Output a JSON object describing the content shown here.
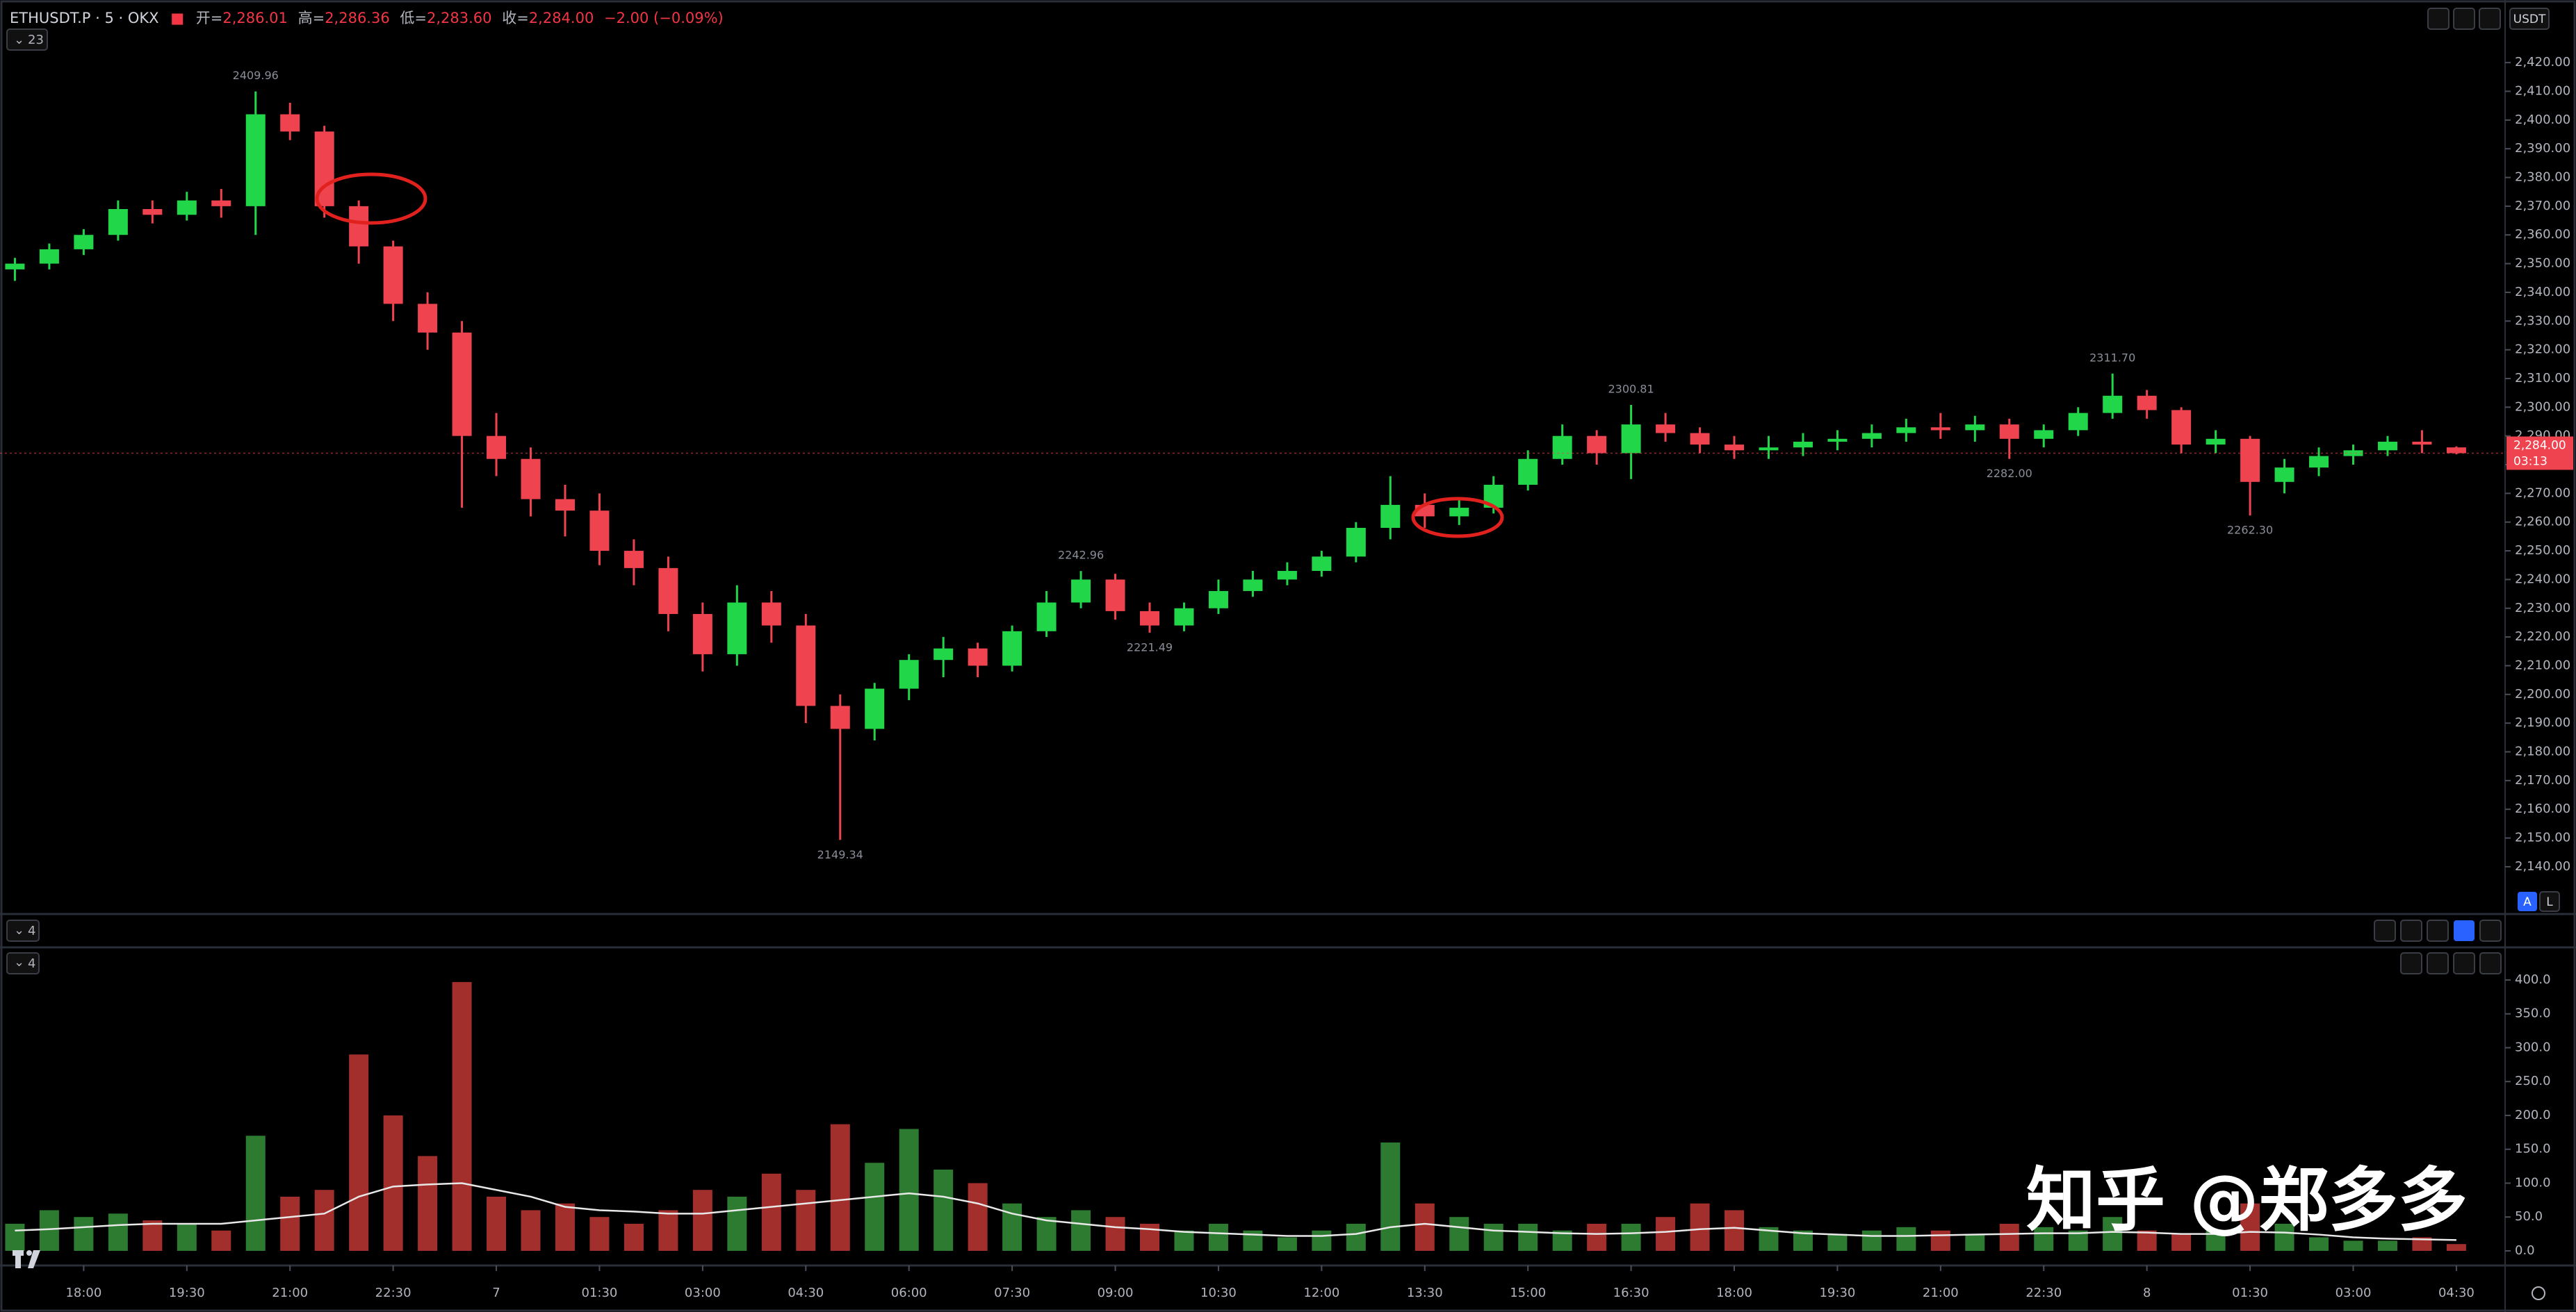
{
  "header": {
    "symbol": "ETHUSDT.P · 5 · OKX",
    "open_label": "开=",
    "open": "2,286.01",
    "high_label": "高=",
    "high": "2,286.36",
    "low_label": "低=",
    "low": "2,283.60",
    "close_label": "收=",
    "close": "2,284.00",
    "change": "−2.00 (−0.09%)"
  },
  "toolbar": {
    "currency": "USDT",
    "auto": "A",
    "log": "L"
  },
  "panes": {
    "main_count": "23",
    "second_count": "4",
    "volume_count": "4"
  },
  "watermark": "知乎 @郑多多",
  "chart_data": [
    {
      "type": "candlestick",
      "x": [
        -60,
        -30,
        0,
        30,
        60,
        90,
        120,
        150,
        180,
        210,
        240,
        270,
        300,
        330,
        360,
        390,
        420,
        450,
        480,
        510,
        540,
        570,
        600,
        630,
        660,
        690,
        720,
        750,
        780,
        810,
        840,
        870,
        900,
        930,
        960,
        990,
        1020,
        1050,
        1080,
        1110,
        1140,
        1170,
        1200,
        1230,
        1260,
        1290,
        1320,
        1350,
        1380,
        1410,
        1440,
        1470,
        1500,
        1530,
        1560,
        1590,
        1620,
        1650,
        1680,
        1710,
        1740,
        1770,
        1800,
        1830,
        1860,
        1890,
        1920,
        1950,
        1980,
        2010,
        2040,
        2070
      ],
      "open": [
        2348,
        2350,
        2355,
        2360,
        2369,
        2367,
        2372,
        2370,
        2402,
        2396,
        2370,
        2356,
        2336,
        2326,
        2290,
        2282,
        2268,
        2264,
        2250,
        2244,
        2228,
        2214,
        2232,
        2224,
        2196,
        2188,
        2202,
        2212,
        2216,
        2210,
        2222,
        2232,
        2240,
        2229,
        2224,
        2230,
        2236,
        2240,
        2243,
        2248,
        2258,
        2266,
        2262,
        2265,
        2273,
        2282,
        2290,
        2284,
        2294,
        2291,
        2287,
        2285,
        2286,
        2288,
        2289,
        2291,
        2293,
        2292,
        2294,
        2289,
        2292,
        2298,
        2304,
        2299,
        2287,
        2289,
        2274,
        2279,
        2283,
        2285,
        2288,
        2286.01
      ],
      "high": [
        2352,
        2357,
        2362,
        2372,
        2372,
        2375,
        2376,
        2409.96,
        2406,
        2398,
        2372,
        2358,
        2340,
        2330,
        2298,
        2286,
        2273,
        2270,
        2254,
        2248,
        2232,
        2238,
        2236,
        2228,
        2200,
        2204,
        2214,
        2220,
        2218,
        2224,
        2236,
        2242.96,
        2242,
        2232,
        2232,
        2240,
        2243,
        2246,
        2250,
        2260,
        2276,
        2270,
        2268,
        2276,
        2285,
        2294,
        2292,
        2300.81,
        2298,
        2293,
        2290,
        2290,
        2291,
        2292,
        2294,
        2296,
        2298,
        2297,
        2296,
        2294,
        2300,
        2311.7,
        2306,
        2300,
        2292,
        2290,
        2282,
        2286,
        2287,
        2290,
        2292,
        2286.36
      ],
      "low": [
        2344,
        2348,
        2353,
        2358,
        2364,
        2365,
        2366,
        2360,
        2393,
        2366,
        2350,
        2330,
        2320,
        2265,
        2276,
        2262,
        2255,
        2245,
        2238,
        2222,
        2208,
        2210,
        2218,
        2190,
        2149.34,
        2184,
        2198,
        2206,
        2206,
        2208,
        2220,
        2230,
        2226,
        2221.49,
        2222,
        2228,
        2234,
        2238,
        2241,
        2246,
        2254,
        2258,
        2259,
        2263,
        2271,
        2280,
        2280,
        2275,
        2288,
        2284,
        2282,
        2282,
        2283,
        2285,
        2286,
        2288,
        2289,
        2288,
        2282,
        2286,
        2290,
        2296,
        2296,
        2284,
        2284,
        2262.3,
        2270,
        2276,
        2280,
        2283,
        2284,
        2283.6
      ],
      "close": [
        2350,
        2355,
        2360,
        2369,
        2367,
        2372,
        2370,
        2402,
        2396,
        2370,
        2356,
        2336,
        2326,
        2290,
        2282,
        2268,
        2264,
        2250,
        2244,
        2228,
        2214,
        2232,
        2224,
        2196,
        2188,
        2202,
        2212,
        2216,
        2210,
        2222,
        2232,
        2240,
        2229,
        2224,
        2230,
        2236,
        2240,
        2243,
        2248,
        2258,
        2266,
        2262,
        2265,
        2273,
        2282,
        2290,
        2284,
        2294,
        2291,
        2287,
        2285,
        2286,
        2288,
        2289,
        2291,
        2293,
        2292,
        2294,
        2289,
        2292,
        2298,
        2304,
        2299,
        2287,
        2289,
        2274,
        2279,
        2283,
        2285,
        2288,
        2287,
        2284
      ],
      "up_color": "#22d64a",
      "down_color": "#ef4350",
      "xlim": [
        -73,
        2112.5
      ],
      "xticks": [
        {
          "value": 0,
          "label": "18:00"
        },
        {
          "value": 90,
          "label": "19:30"
        },
        {
          "value": 180,
          "label": "21:00"
        },
        {
          "value": 270,
          "label": "22:30"
        },
        {
          "value": 360,
          "label": "7"
        },
        {
          "value": 450,
          "label": "01:30"
        },
        {
          "value": 540,
          "label": "03:00"
        },
        {
          "value": 630,
          "label": "04:30"
        },
        {
          "value": 720,
          "label": "06:00"
        },
        {
          "value": 810,
          "label": "07:30"
        },
        {
          "value": 900,
          "label": "09:00"
        },
        {
          "value": 990,
          "label": "10:30"
        },
        {
          "value": 1080,
          "label": "12:00"
        },
        {
          "value": 1170,
          "label": "13:30"
        },
        {
          "value": 1260,
          "label": "15:00"
        },
        {
          "value": 1350,
          "label": "16:30"
        },
        {
          "value": 1440,
          "label": "18:00"
        },
        {
          "value": 1530,
          "label": "19:30"
        },
        {
          "value": 1620,
          "label": "21:00"
        },
        {
          "value": 1710,
          "label": "22:30"
        },
        {
          "value": 1800,
          "label": "8"
        },
        {
          "value": 1890,
          "label": "01:30"
        },
        {
          "value": 1980,
          "label": "03:00"
        },
        {
          "value": 2070,
          "label": "04:30"
        }
      ],
      "ylim": [
        2124.5,
        2437.2
      ],
      "yticks": [
        {
          "value": 2140,
          "label": "2,140.00"
        },
        {
          "value": 2150,
          "label": "2,150.00"
        },
        {
          "value": 2160,
          "label": "2,160.00"
        },
        {
          "value": 2170,
          "label": "2,170.00"
        },
        {
          "value": 2180,
          "label": "2,180.00"
        },
        {
          "value": 2190,
          "label": "2,190.00"
        },
        {
          "value": 2200,
          "label": "2,200.00"
        },
        {
          "value": 2210,
          "label": "2,210.00"
        },
        {
          "value": 2220,
          "label": "2,220.00"
        },
        {
          "value": 2230,
          "label": "2,230.00"
        },
        {
          "value": 2240,
          "label": "2,240.00"
        },
        {
          "value": 2250,
          "label": "2,250.00"
        },
        {
          "value": 2260,
          "label": "2,260.00"
        },
        {
          "value": 2270,
          "label": "2,270.00"
        },
        {
          "value": 2280,
          "label": "2,280.00"
        },
        {
          "value": 2290,
          "label": "2,290.00"
        },
        {
          "value": 2300,
          "label": "2,300.00"
        },
        {
          "value": 2310,
          "label": "2,310.00"
        },
        {
          "value": 2320,
          "label": "2,320.00"
        },
        {
          "value": 2330,
          "label": "2,330.00"
        },
        {
          "value": 2340,
          "label": "2,340.00"
        },
        {
          "value": 2350,
          "label": "2,350.00"
        },
        {
          "value": 2360,
          "label": "2,360.00"
        },
        {
          "value": 2370,
          "label": "2,370.00"
        },
        {
          "value": 2380,
          "label": "2,380.00"
        },
        {
          "value": 2390,
          "label": "2,390.00"
        },
        {
          "value": 2400,
          "label": "2,400.00"
        },
        {
          "value": 2410,
          "label": "2,410.00"
        },
        {
          "value": 2420,
          "label": "2,420.00"
        }
      ],
      "last_price": {
        "value": 2284,
        "label": "2,284.00",
        "countdown": "03:13"
      },
      "extremes": [
        {
          "x": 150,
          "value": 2409.96,
          "label": "2409.96",
          "side": "above"
        },
        {
          "x": 660,
          "value": 2149.34,
          "label": "2149.34",
          "side": "below"
        },
        {
          "x": 870,
          "value": 2242.96,
          "label": "2242.96",
          "side": "above"
        },
        {
          "x": 930,
          "value": 2221.49,
          "label": "2221.49",
          "side": "below"
        },
        {
          "x": 1350,
          "value": 2300.81,
          "label": "2300.81",
          "side": "above"
        },
        {
          "x": 1770,
          "value": 2311.7,
          "label": "2311.70",
          "side": "above"
        },
        {
          "x": 1680,
          "value": 2282.0,
          "label": "2282.00",
          "side": "below"
        },
        {
          "x": 1890,
          "value": 2262.3,
          "label": "2262.30",
          "side": "below"
        }
      ]
    },
    {
      "type": "bar",
      "x": [
        -60,
        -30,
        0,
        30,
        60,
        90,
        120,
        150,
        180,
        210,
        240,
        270,
        300,
        330,
        360,
        390,
        420,
        450,
        480,
        510,
        540,
        570,
        600,
        630,
        660,
        690,
        720,
        750,
        780,
        810,
        840,
        870,
        900,
        930,
        960,
        990,
        1020,
        1050,
        1080,
        1110,
        1140,
        1170,
        1200,
        1230,
        1260,
        1290,
        1320,
        1350,
        1380,
        1410,
        1440,
        1470,
        1500,
        1530,
        1560,
        1590,
        1620,
        1650,
        1680,
        1710,
        1740,
        1770,
        1800,
        1830,
        1860,
        1890,
        1920,
        1950,
        1980,
        2010,
        2040,
        2070
      ],
      "values": [
        40,
        60,
        50,
        55,
        45,
        40,
        30,
        170,
        80,
        90,
        290,
        200,
        140,
        397,
        80,
        60,
        70,
        50,
        40,
        60,
        90,
        80,
        114,
        90,
        187,
        130,
        180,
        120,
        100,
        70,
        50,
        60,
        50,
        40,
        30,
        40,
        30,
        20,
        30,
        40,
        160,
        70,
        50,
        40,
        40,
        30,
        40,
        40,
        50,
        70,
        60,
        35,
        30,
        25,
        30,
        35,
        30,
        25,
        40,
        35,
        30,
        50,
        30,
        25,
        30,
        70,
        40,
        20,
        15,
        15,
        20,
        10
      ],
      "ma": [
        30,
        32,
        35,
        38,
        40,
        40,
        40,
        45,
        50,
        55,
        80,
        95,
        98,
        100,
        90,
        80,
        65,
        60,
        58,
        55,
        55,
        60,
        65,
        70,
        75,
        80,
        85,
        80,
        70,
        55,
        45,
        40,
        35,
        32,
        28,
        26,
        24,
        22,
        22,
        25,
        35,
        40,
        35,
        30,
        28,
        26,
        25,
        26,
        28,
        32,
        34,
        30,
        26,
        24,
        22,
        22,
        23,
        24,
        25,
        26,
        26,
        28,
        27,
        25,
        25,
        28,
        27,
        24,
        20,
        18,
        17,
        16
      ],
      "up_color": "#2d7a31",
      "down_color": "#a32f2c",
      "ma_color": "#e8e8e8",
      "xlim": [
        -73,
        2112.5
      ],
      "ylim": [
        -14.4,
        441
      ],
      "yticks": [
        {
          "value": 0,
          "label": "0.0"
        },
        {
          "value": 50,
          "label": "50.0"
        },
        {
          "value": 100,
          "label": "100.0"
        },
        {
          "value": 150,
          "label": "150.0"
        },
        {
          "value": 200,
          "label": "200.0"
        },
        {
          "value": 250,
          "label": "250.0"
        },
        {
          "value": 300,
          "label": "300.0"
        },
        {
          "value": 350,
          "label": "350.0"
        },
        {
          "value": 400,
          "label": "400.0"
        }
      ]
    }
  ]
}
